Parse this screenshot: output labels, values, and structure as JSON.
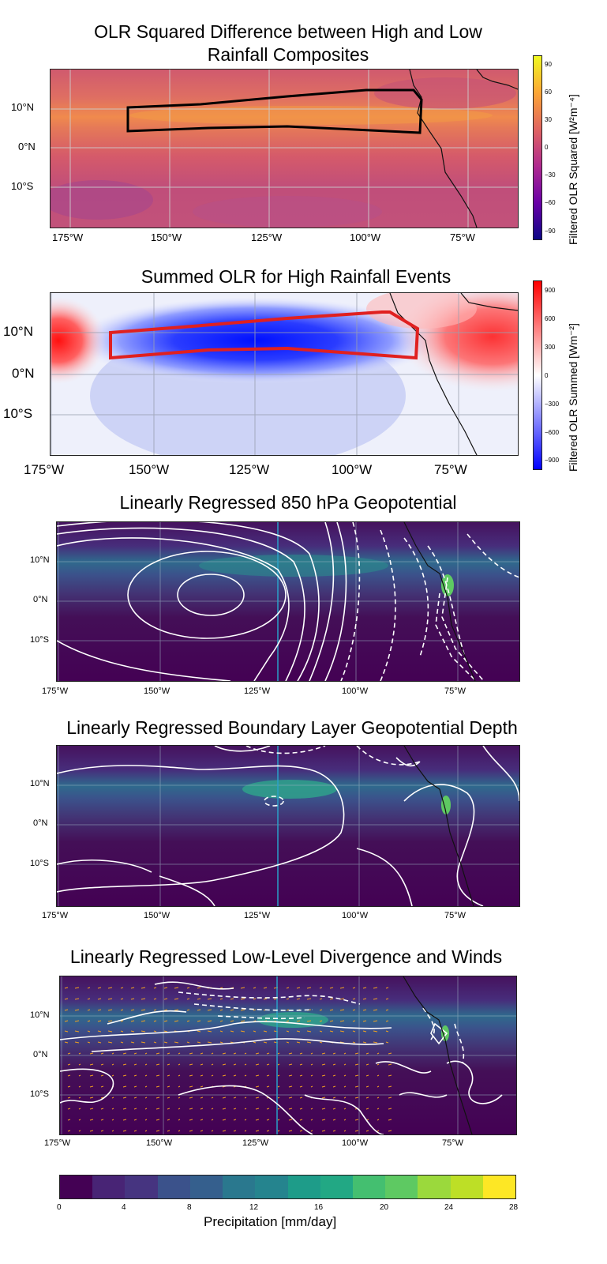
{
  "chart_data": [
    {
      "type": "heatmap",
      "title": "OLR Squared Difference between High and Low Rainfall Composites",
      "title_line1": "OLR Squared Difference between High and Low",
      "title_line2": "Rainfall Composites",
      "x_ticks": [
        "175°W",
        "150°W",
        "125°W",
        "100°W",
        "75°W"
      ],
      "y_ticks": [
        "10°N",
        "0°N",
        "10°S"
      ],
      "colorbar": {
        "label": "Filtered OLR Squared [W²m⁻⁴]",
        "ticks": [
          "90",
          "60",
          "30",
          "0",
          "−30",
          "−60",
          "−90"
        ],
        "range": [
          -100,
          100
        ],
        "colors": [
          "#0c0786",
          "#6a00a7",
          "#b02a8f",
          "#e06461",
          "#fca635",
          "#f0f921"
        ]
      },
      "outline_color": "#000000",
      "region_lon": [
        -160,
        -85
      ],
      "region_lat": [
        4,
        14
      ]
    },
    {
      "type": "heatmap",
      "title": "Summed OLR for High Rainfall Events",
      "x_ticks": [
        "175°W",
        "150°W",
        "125°W",
        "100°W",
        "75°W"
      ],
      "y_ticks": [
        "10°N",
        "0°N",
        "10°S"
      ],
      "colorbar": {
        "label": "Filtered OLR Summed [Wm⁻²]",
        "ticks": [
          "900",
          "600",
          "300",
          "0",
          "−300",
          "−600",
          "−900"
        ],
        "range": [
          -1000,
          1000
        ],
        "colors": [
          "#0000ff",
          "#ffffff",
          "#ff0000"
        ]
      },
      "outline_color": "#e02020",
      "region_lon": [
        -160,
        -85
      ],
      "region_lat": [
        4,
        14
      ]
    },
    {
      "type": "heatmap",
      "title": "Linearly Regressed 850 hPa Geopotential",
      "x_ticks": [
        "175°W",
        "150°W",
        "125°W",
        "100°W",
        "75°W"
      ],
      "y_ticks": [
        "10°N",
        "0°N",
        "10°S"
      ],
      "overlay": "contours (solid positive, dashed negative)"
    },
    {
      "type": "heatmap",
      "title": "Linearly Regressed Boundary Layer Geopotential Depth",
      "x_ticks": [
        "175°W",
        "150°W",
        "125°W",
        "100°W",
        "75°W"
      ],
      "y_ticks": [
        "10°N",
        "0°N",
        "10°S"
      ],
      "overlay": "contours (solid positive, dashed negative)"
    },
    {
      "type": "heatmap",
      "title": "Linearly Regressed Low-Level Divergence and Winds",
      "x_ticks": [
        "175°W",
        "150°W",
        "125°W",
        "100°W",
        "75°W"
      ],
      "y_ticks": [
        "10°N",
        "0°N",
        "10°S"
      ],
      "overlay": "contours and wind vectors"
    },
    {
      "type": "colorbar",
      "label": "Precipitation [mm/day]",
      "ticks": [
        "0",
        "4",
        "8",
        "12",
        "16",
        "20",
        "24",
        "28"
      ],
      "range": [
        0,
        28
      ],
      "colors": [
        "#440154",
        "#472d7b",
        "#3b528b",
        "#2c728e",
        "#21918c",
        "#28ae80",
        "#5ec962",
        "#addc30",
        "#fde725"
      ]
    }
  ]
}
